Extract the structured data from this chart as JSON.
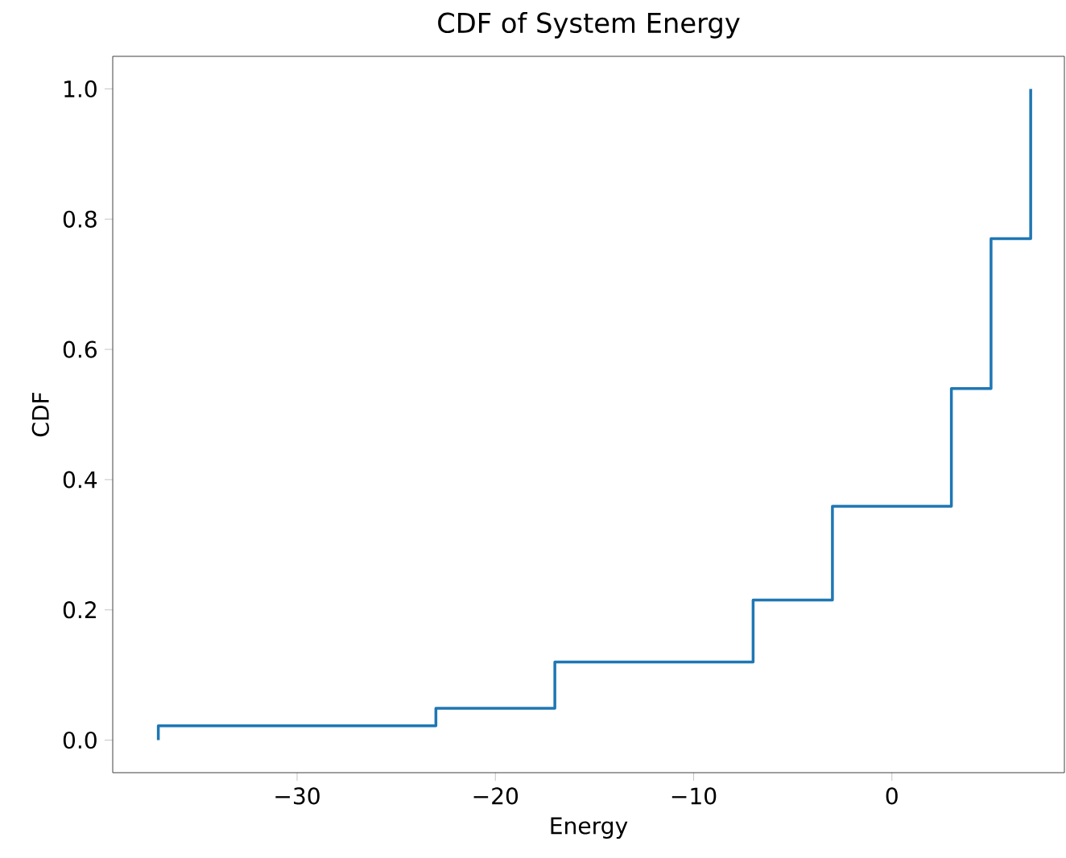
{
  "chart_data": {
    "type": "step",
    "title": "CDF of System Energy",
    "xlabel": "Energy",
    "ylabel": "CDF",
    "x": [
      -37,
      -37,
      -23,
      -17,
      -7,
      -3,
      3,
      5,
      7
    ],
    "series": [
      {
        "color": "#1f77b4",
        "values": [
          0,
          0.022,
          0.049,
          0.12,
          0.215,
          0.359,
          0.54,
          0.77,
          1.0
        ]
      }
    ],
    "xlim": [
      -39.3,
      8.7
    ],
    "ylim": [
      -0.05,
      1.05
    ],
    "xticks": [
      {
        "value": -30,
        "label": "−30"
      },
      {
        "value": -20,
        "label": "−20"
      },
      {
        "value": -10,
        "label": "−10"
      },
      0
    ],
    "yticks": [
      {
        "value": 0,
        "label": "0.0"
      },
      {
        "value": 0.2,
        "label": "0.2"
      },
      {
        "value": 0.4,
        "label": "0.4"
      },
      {
        "value": 0.6,
        "label": "0.6"
      },
      {
        "value": 0.8,
        "label": "0.8"
      },
      {
        "value": 1.0,
        "label": "1.0"
      }
    ],
    "grid": false
  }
}
